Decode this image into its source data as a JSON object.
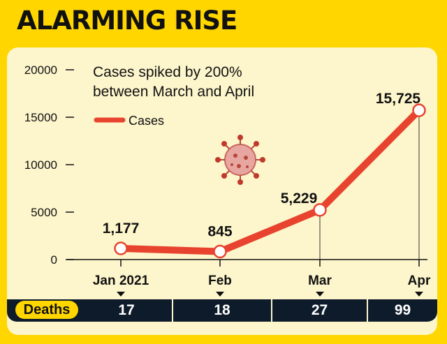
{
  "header": {
    "title": "ALARMING RISE"
  },
  "chart_data": {
    "type": "line",
    "title": "Cases spiked by 200%\nbetween March and April",
    "title_lines": [
      "Cases spiked by 200%",
      "between March and April"
    ],
    "categories": [
      "Jan 2021",
      "Feb",
      "Mar",
      "Apr"
    ],
    "series": [
      {
        "name": "Cases",
        "values": [
          1177,
          845,
          5229,
          15725
        ],
        "labels": [
          "1,177",
          "845",
          "5,229",
          "15,725"
        ],
        "color": "#e8432e"
      }
    ],
    "ylim": [
      0,
      20000
    ],
    "yticks": [
      0,
      5000,
      10000,
      15000,
      20000
    ],
    "legend": "top-left",
    "grid": false
  },
  "deaths": {
    "label": "Deaths",
    "values": [
      "17",
      "18",
      "27",
      "99"
    ]
  },
  "colors": {
    "background": "#ffd600",
    "panel": "#fdf6cc",
    "line": "#e8432e",
    "bar": "#0d1b2a"
  },
  "icons": [
    "virus-icon"
  ]
}
